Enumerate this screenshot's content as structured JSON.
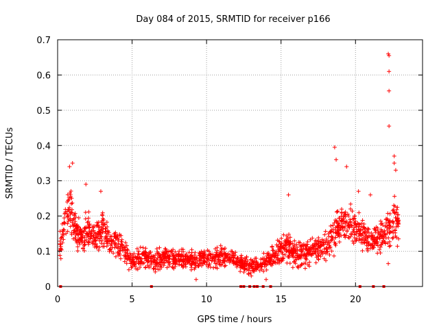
{
  "chart_data": {
    "type": "scatter",
    "title": "Day 084 of 2015, SRMTID for receiver p166",
    "xlabel": "GPS time / hours",
    "ylabel": "SRMTID / TECUs",
    "xlim": [
      0,
      24.5
    ],
    "ylim": [
      0,
      0.7
    ],
    "x_ticks": [
      "0",
      "5",
      "10",
      "15",
      "20"
    ],
    "x_tick_values": [
      0,
      5,
      10,
      15,
      20
    ],
    "y_ticks": [
      "0",
      "0.1",
      "0.2",
      "0.3",
      "0.4",
      "0.5",
      "0.6",
      "0.7"
    ],
    "y_tick_values": [
      0,
      0.1,
      0.2,
      0.3,
      0.4,
      0.5,
      0.6,
      0.7
    ],
    "grid": true,
    "marker": "+",
    "color": "#ff0000",
    "x_range_covered": [
      0.1,
      22.9
    ],
    "envelope": {
      "x": [
        0.1,
        0.5,
        0.8,
        1.0,
        1.5,
        2.0,
        2.5,
        3.0,
        3.5,
        4.0,
        4.5,
        5.0,
        5.5,
        6.0,
        6.5,
        7.0,
        7.5,
        8.0,
        9.0,
        10.0,
        11.0,
        12.0,
        12.5,
        13.0,
        13.5,
        14.0,
        14.5,
        15.0,
        15.5,
        16.0,
        17.0,
        18.0,
        18.5,
        19.0,
        19.5,
        20.0,
        20.5,
        21.0,
        21.5,
        22.0,
        22.5,
        22.9
      ],
      "center": [
        0.1,
        0.18,
        0.22,
        0.2,
        0.14,
        0.16,
        0.13,
        0.17,
        0.12,
        0.12,
        0.1,
        0.075,
        0.08,
        0.085,
        0.07,
        0.08,
        0.08,
        0.08,
        0.075,
        0.08,
        0.085,
        0.075,
        0.06,
        0.06,
        0.06,
        0.075,
        0.085,
        0.1,
        0.11,
        0.09,
        0.1,
        0.11,
        0.15,
        0.17,
        0.19,
        0.16,
        0.15,
        0.13,
        0.14,
        0.15,
        0.18,
        0.19
      ],
      "spread": [
        0.05,
        0.08,
        0.1,
        0.08,
        0.06,
        0.08,
        0.06,
        0.08,
        0.06,
        0.06,
        0.05,
        0.035,
        0.04,
        0.045,
        0.035,
        0.04,
        0.04,
        0.035,
        0.035,
        0.035,
        0.04,
        0.035,
        0.03,
        0.03,
        0.03,
        0.035,
        0.04,
        0.06,
        0.07,
        0.05,
        0.05,
        0.06,
        0.08,
        0.08,
        0.09,
        0.07,
        0.06,
        0.05,
        0.06,
        0.07,
        0.09,
        0.09
      ]
    },
    "notable_points": [
      {
        "x": 0.8,
        "y": 0.34
      },
      {
        "x": 1.0,
        "y": 0.35
      },
      {
        "x": 1.9,
        "y": 0.29
      },
      {
        "x": 2.9,
        "y": 0.27
      },
      {
        "x": 15.5,
        "y": 0.26
      },
      {
        "x": 18.6,
        "y": 0.395
      },
      {
        "x": 18.7,
        "y": 0.36
      },
      {
        "x": 19.4,
        "y": 0.34
      },
      {
        "x": 20.2,
        "y": 0.27
      },
      {
        "x": 21.0,
        "y": 0.26
      },
      {
        "x": 22.2,
        "y": 0.66
      },
      {
        "x": 22.25,
        "y": 0.655
      },
      {
        "x": 22.25,
        "y": 0.61
      },
      {
        "x": 22.25,
        "y": 0.555
      },
      {
        "x": 22.25,
        "y": 0.455
      },
      {
        "x": 22.6,
        "y": 0.37
      },
      {
        "x": 22.6,
        "y": 0.35
      },
      {
        "x": 22.7,
        "y": 0.33
      },
      {
        "x": 22.2,
        "y": 0.065
      },
      {
        "x": 14.0,
        "y": 0.02
      },
      {
        "x": 13.0,
        "y": 0.03
      },
      {
        "x": 9.3,
        "y": 0.02
      }
    ],
    "baseline_markers_x": [
      0.2,
      6.3,
      12.3,
      12.5,
      12.9,
      13.2,
      13.4,
      13.8,
      14.3,
      20.3,
      21.2,
      21.9
    ]
  }
}
